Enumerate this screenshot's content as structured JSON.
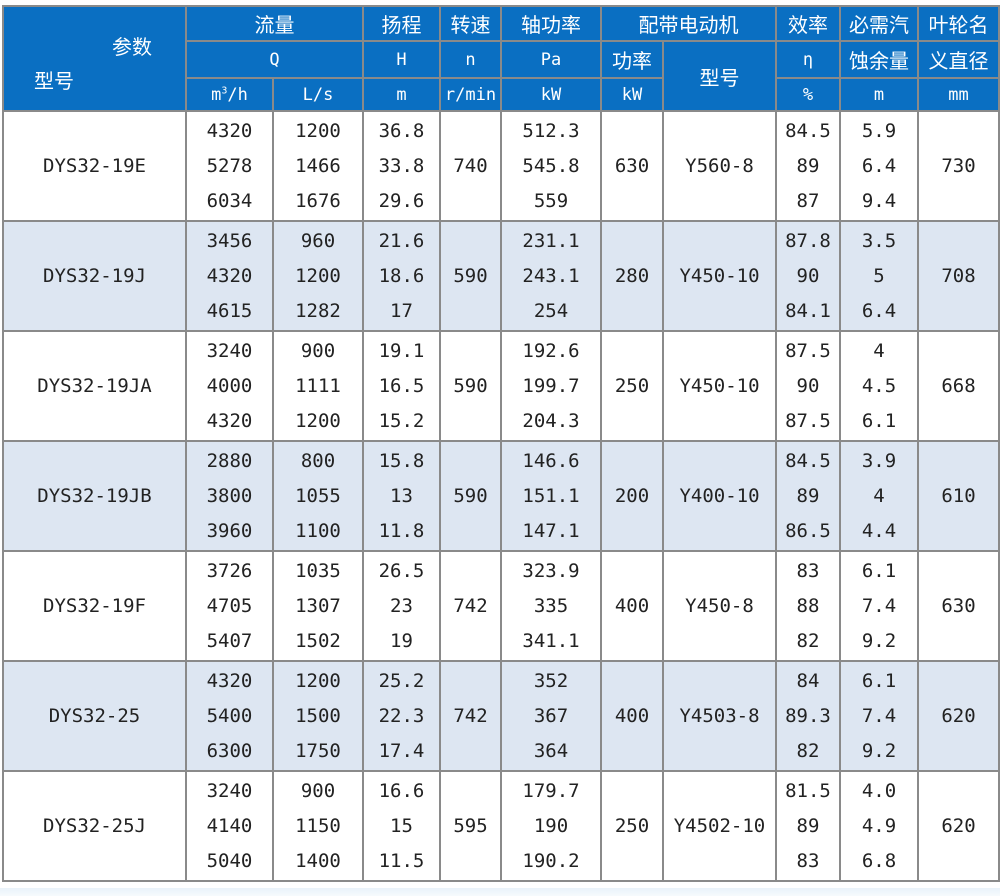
{
  "header": {
    "param_label": "参数",
    "model_label": "型号",
    "flow": {
      "title": "流量",
      "symbol": "Q",
      "unit_m3h_base": "m",
      "unit_m3h_sup": "3",
      "unit_m3h_tail": "/h",
      "unit_ls": "L/s"
    },
    "head": {
      "title": "扬程",
      "symbol": "H",
      "unit": "m"
    },
    "speed": {
      "title": "转速",
      "symbol": "n",
      "unit": "r/min"
    },
    "shaft_power": {
      "title": "轴功率",
      "symbol": "Pa",
      "unit": "kW"
    },
    "motor": {
      "title": "配带电动机",
      "power_label": "功率",
      "power_unit": "kW",
      "model_label": "型号"
    },
    "efficiency": {
      "title": "效率",
      "symbol": "η",
      "unit": "%"
    },
    "npsh": {
      "title_line1": "必需汽",
      "title_line2": "蚀余量",
      "unit": "m"
    },
    "impeller": {
      "title_line1": "叶轮名",
      "title_line2": "义直径",
      "unit": "mm"
    }
  },
  "rows": [
    {
      "model": "DYS32-19E",
      "flow_m3h": [
        "4320",
        "5278",
        "6034"
      ],
      "flow_ls": [
        "1200",
        "1466",
        "1676"
      ],
      "head": [
        "36.8",
        "33.8",
        "29.6"
      ],
      "speed": "740",
      "shaft_power": [
        "512.3",
        "545.8",
        "559"
      ],
      "motor_power": "630",
      "motor_model": "Y560-8",
      "efficiency": [
        "84.5",
        "89",
        "87"
      ],
      "npsh": [
        "5.9",
        "6.4",
        "9.4"
      ],
      "impeller": "730"
    },
    {
      "model": "DYS32-19J",
      "flow_m3h": [
        "3456",
        "4320",
        "4615"
      ],
      "flow_ls": [
        "960",
        "1200",
        "1282"
      ],
      "head": [
        "21.6",
        "18.6",
        "17"
      ],
      "speed": "590",
      "shaft_power": [
        "231.1",
        "243.1",
        "254"
      ],
      "motor_power": "280",
      "motor_model": "Y450-10",
      "efficiency": [
        "87.8",
        "90",
        "84.1"
      ],
      "npsh": [
        "3.5",
        "5",
        "6.4"
      ],
      "impeller": "708"
    },
    {
      "model": "DYS32-19JA",
      "flow_m3h": [
        "3240",
        "4000",
        "4320"
      ],
      "flow_ls": [
        "900",
        "1111",
        "1200"
      ],
      "head": [
        "19.1",
        "16.5",
        "15.2"
      ],
      "speed": "590",
      "shaft_power": [
        "192.6",
        "199.7",
        "204.3"
      ],
      "motor_power": "250",
      "motor_model": "Y450-10",
      "efficiency": [
        "87.5",
        "90",
        "87.5"
      ],
      "npsh": [
        "4",
        "4.5",
        "6.1"
      ],
      "impeller": "668"
    },
    {
      "model": "DYS32-19JB",
      "flow_m3h": [
        "2880",
        "3800",
        "3960"
      ],
      "flow_ls": [
        "800",
        "1055",
        "1100"
      ],
      "head": [
        "15.8",
        "13",
        "11.8"
      ],
      "speed": "590",
      "shaft_power": [
        "146.6",
        "151.1",
        "147.1"
      ],
      "motor_power": "200",
      "motor_model": "Y400-10",
      "efficiency": [
        "84.5",
        "89",
        "86.5"
      ],
      "npsh": [
        "3.9",
        "4",
        "4.4"
      ],
      "impeller": "610"
    },
    {
      "model": "DYS32-19F",
      "flow_m3h": [
        "3726",
        "4705",
        "5407"
      ],
      "flow_ls": [
        "1035",
        "1307",
        "1502"
      ],
      "head": [
        "26.5",
        "23",
        "19"
      ],
      "speed": "742",
      "shaft_power": [
        "323.9",
        "335",
        "341.1"
      ],
      "motor_power": "400",
      "motor_model": "Y450-8",
      "efficiency": [
        "83",
        "88",
        "82"
      ],
      "npsh": [
        "6.1",
        "7.4",
        "9.2"
      ],
      "impeller": "630"
    },
    {
      "model": "DYS32-25",
      "flow_m3h": [
        "4320",
        "5400",
        "6300"
      ],
      "flow_ls": [
        "1200",
        "1500",
        "1750"
      ],
      "head": [
        "25.2",
        "22.3",
        "17.4"
      ],
      "speed": "742",
      "shaft_power": [
        "352",
        "367",
        "364"
      ],
      "motor_power": "400",
      "motor_model": "Y4503-8",
      "efficiency": [
        "84",
        "89.3",
        "82"
      ],
      "npsh": [
        "6.1",
        "7.4",
        "9.2"
      ],
      "impeller": "620"
    },
    {
      "model": "DYS32-25J",
      "flow_m3h": [
        "3240",
        "4140",
        "5040"
      ],
      "flow_ls": [
        "900",
        "1150",
        "1400"
      ],
      "head": [
        "16.6",
        "15",
        "11.5"
      ],
      "speed": "595",
      "shaft_power": [
        "179.7",
        "190",
        "190.2"
      ],
      "motor_power": "250",
      "motor_model": "Y4502-10",
      "efficiency": [
        "81.5",
        "89",
        "83"
      ],
      "npsh": [
        "4.0",
        "4.9",
        "6.8"
      ],
      "impeller": "620"
    }
  ],
  "colors": {
    "header_bg": "#0a6fc2",
    "alt_row_bg": "#dde6f2",
    "border": "#8a8a8a"
  }
}
